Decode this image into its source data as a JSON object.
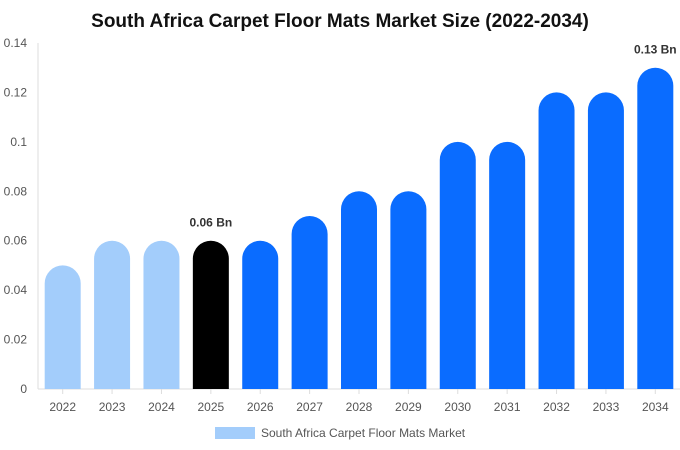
{
  "chart_data": {
    "type": "bar",
    "title": "South Africa Carpet Floor Mats Market Size (2022-2034)",
    "categories": [
      "2022",
      "2023",
      "2024",
      "2025",
      "2026",
      "2027",
      "2028",
      "2029",
      "2030",
      "2031",
      "2032",
      "2033",
      "2034"
    ],
    "series": [
      {
        "name": "South Africa Carpet Floor Mats Market",
        "values": [
          0.05,
          0.06,
          0.06,
          0.06,
          0.06,
          0.07,
          0.08,
          0.08,
          0.1,
          0.1,
          0.12,
          0.12,
          0.13
        ]
      }
    ],
    "ylim": [
      0,
      0.14
    ],
    "yticks": [
      "0",
      "0.02",
      "0.04",
      "0.06",
      "0.08",
      "0.1",
      "0.12",
      "0.14"
    ],
    "data_labels": [
      {
        "category": "2025",
        "text": "0.06 Bn"
      },
      {
        "category": "2034",
        "text": "0.13 Bn"
      }
    ],
    "colors": {
      "historical": "#a3cdfb",
      "current": "#000000",
      "forecast": "#0a6cff",
      "legend": "#a3cdfb"
    },
    "color_groups": [
      "historical",
      "historical",
      "historical",
      "current",
      "forecast",
      "forecast",
      "forecast",
      "forecast",
      "forecast",
      "forecast",
      "forecast",
      "forecast",
      "forecast"
    ],
    "legend_position": "bottom",
    "grid": false
  }
}
